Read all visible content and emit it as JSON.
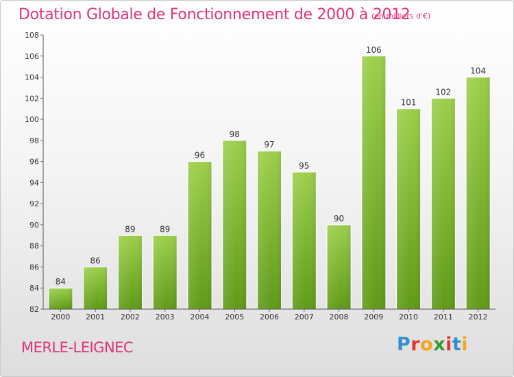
{
  "header": {
    "title": "Dotation Globale de Fonctionnement de 2000 à 2012",
    "subtitle": "(en milliers d'€)"
  },
  "footer": {
    "town": "MERLE-LEIGNEC",
    "logo": [
      "P",
      "r",
      "o",
      "x",
      "i",
      "t",
      "i"
    ]
  },
  "colors": {
    "accent": "#e0337a",
    "bar_top": "#9ccf4b",
    "bar_bottom": "#5f9a17",
    "logo": [
      "#2f8fd0",
      "#e5352b",
      "#f2a51b",
      "#3b9a2f",
      "#e5352b",
      "#2f8fd0",
      "#f2a51b"
    ]
  },
  "chart_data": {
    "type": "bar",
    "title": "Dotation Globale de Fonctionnement de 2000 à 2012",
    "subtitle": "(en milliers d'€)",
    "categories": [
      "2000",
      "2001",
      "2002",
      "2003",
      "2004",
      "2005",
      "2006",
      "2007",
      "2008",
      "2009",
      "2010",
      "2011",
      "2012"
    ],
    "values": [
      84,
      86,
      89,
      89,
      96,
      98,
      97,
      95,
      90,
      106,
      101,
      102,
      104
    ],
    "ylim": [
      82,
      108
    ],
    "yticks": [
      82,
      84,
      86,
      88,
      90,
      92,
      94,
      96,
      98,
      100,
      102,
      104,
      106,
      108
    ],
    "grid": false,
    "legend": "none",
    "xlabel": "",
    "ylabel": ""
  }
}
